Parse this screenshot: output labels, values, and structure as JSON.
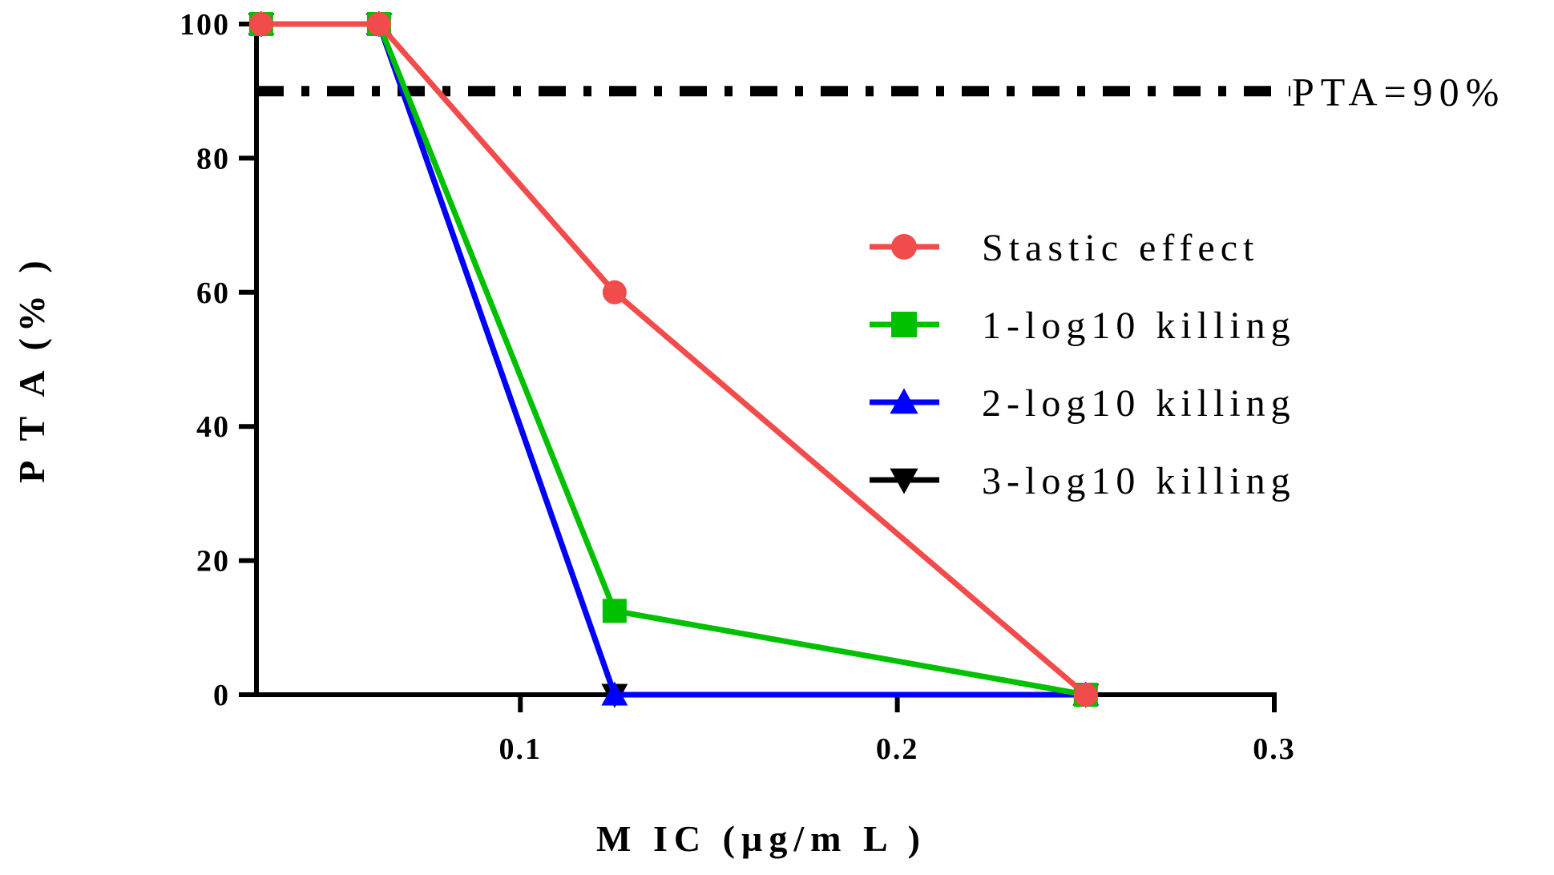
{
  "chart_data": {
    "type": "line",
    "title": "",
    "xlabel": "M IC (µg/m L )",
    "ylabel": "P T A (% )",
    "xlim": [
      0.03,
      0.3
    ],
    "ylim": [
      0,
      100
    ],
    "x_ticks": [
      {
        "value": 0.1,
        "label": "0.1"
      },
      {
        "value": 0.2,
        "label": "0.2"
      },
      {
        "value": 0.3,
        "label": "0.3"
      }
    ],
    "y_ticks": [
      {
        "value": 0,
        "label": "0"
      },
      {
        "value": 20,
        "label": "20"
      },
      {
        "value": 40,
        "label": "40"
      },
      {
        "value": 60,
        "label": "60"
      },
      {
        "value": 80,
        "label": "80"
      },
      {
        "value": 100,
        "label": "100"
      }
    ],
    "reference_line": {
      "y": 90,
      "label": "PTA=90%",
      "color": "#000000",
      "style": "dash-dot"
    },
    "legend_position": "right",
    "series": [
      {
        "name": "3-log10 killing",
        "color": "#000000",
        "marker": "triangle-down",
        "x": [
          0.03125,
          0.0625,
          0.125,
          0.25
        ],
        "values": [
          100,
          100,
          0,
          0
        ]
      },
      {
        "name": "2-log10 killing",
        "color": "#0000FF",
        "marker": "triangle-up",
        "x": [
          0.03125,
          0.0625,
          0.125,
          0.25
        ],
        "values": [
          100,
          100,
          0,
          0
        ]
      },
      {
        "name": "1-log10 killing",
        "color": "#00C000",
        "marker": "square",
        "x": [
          0.03125,
          0.0625,
          0.125,
          0.25
        ],
        "values": [
          100,
          100,
          12.5,
          0
        ]
      },
      {
        "name": "Stastic effect",
        "color": "#F24B4B",
        "marker": "circle",
        "x": [
          0.03125,
          0.0625,
          0.125,
          0.25
        ],
        "values": [
          100,
          100,
          60,
          0
        ]
      }
    ],
    "legend_order": [
      "Stastic effect",
      "1-log10 killing",
      "2-log10 killing",
      "3-log10 killing"
    ]
  }
}
